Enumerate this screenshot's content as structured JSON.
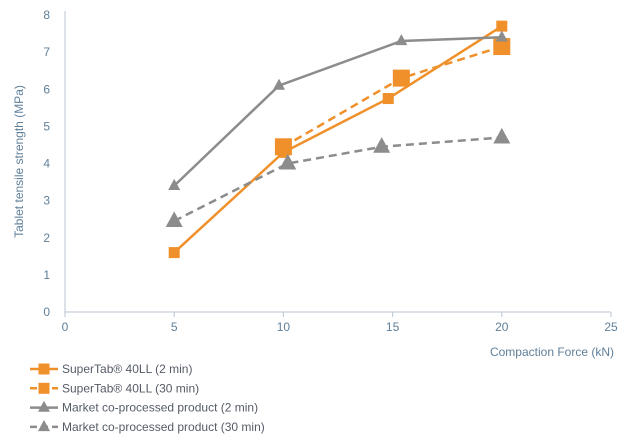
{
  "chart_data": {
    "type": "line",
    "xlabel": "Compaction Force (kN)",
    "ylabel": "Tablet tensile strength (MPa)",
    "xlim": [
      0,
      25
    ],
    "ylim": [
      0,
      8
    ],
    "xticks": [
      0,
      5,
      10,
      15,
      20,
      25
    ],
    "yticks": [
      0,
      1,
      2,
      3,
      4,
      5,
      6,
      7,
      8
    ],
    "grid": false,
    "legend_position": "bottom-left",
    "series": [
      {
        "name": "SuperTab® 40LL (2 min)",
        "color": "#f0902a",
        "line": "solid",
        "marker": "square",
        "marker_size": "small",
        "points": [
          [
            5,
            1.6
          ],
          [
            10,
            4.3
          ],
          [
            14.8,
            5.75
          ],
          [
            20,
            7.7
          ]
        ]
      },
      {
        "name": "SuperTab® 40LL (30 min)",
        "color": "#f0902a",
        "line": "dashed",
        "marker": "square",
        "marker_size": "large",
        "points": [
          [
            10,
            4.45
          ],
          [
            15.4,
            6.3
          ],
          [
            20,
            7.15
          ]
        ]
      },
      {
        "name": "Market co-processed product (2 min)",
        "color": "#8c8c8c",
        "line": "solid",
        "marker": "triangle",
        "marker_size": "small",
        "points": [
          [
            5,
            3.4
          ],
          [
            9.8,
            6.1
          ],
          [
            15.4,
            7.3
          ],
          [
            20,
            7.4
          ]
        ]
      },
      {
        "name": "Market co-processed product (30 min)",
        "color": "#8c8c8c",
        "line": "dashed",
        "marker": "triangle",
        "marker_size": "large",
        "points": [
          [
            5,
            2.45
          ],
          [
            10.2,
            4.0
          ],
          [
            14.5,
            4.45
          ],
          [
            20,
            4.7
          ]
        ]
      }
    ]
  }
}
